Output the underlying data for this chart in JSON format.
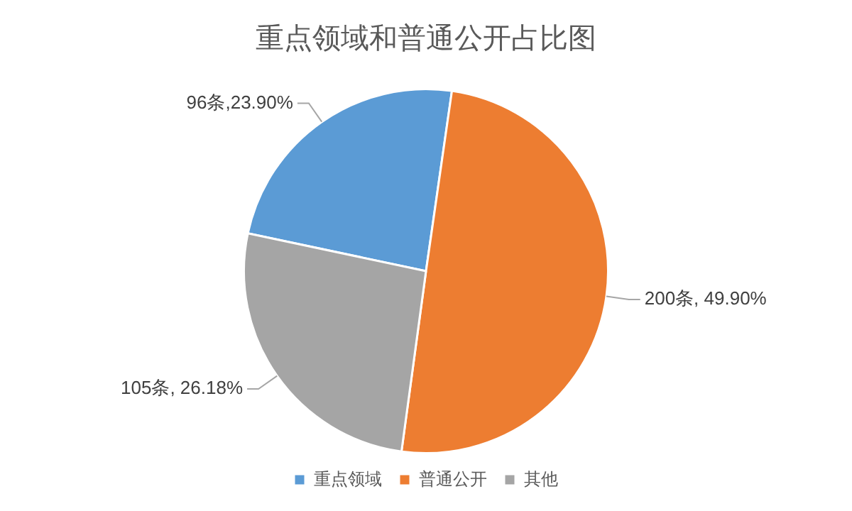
{
  "chart_data": {
    "type": "pie",
    "title": "重点领域和普通公开占比图",
    "categories": [
      "重点领域",
      "普通公开",
      "其他"
    ],
    "values": [
      96,
      200,
      105
    ],
    "colors": [
      "#5b9bd5",
      "#ed7d31",
      "#a5a5a5"
    ],
    "value_labels": [
      "96条,23.90%",
      "200条, 49.90%",
      "105条, 26.18%"
    ],
    "legend": "bottom"
  }
}
